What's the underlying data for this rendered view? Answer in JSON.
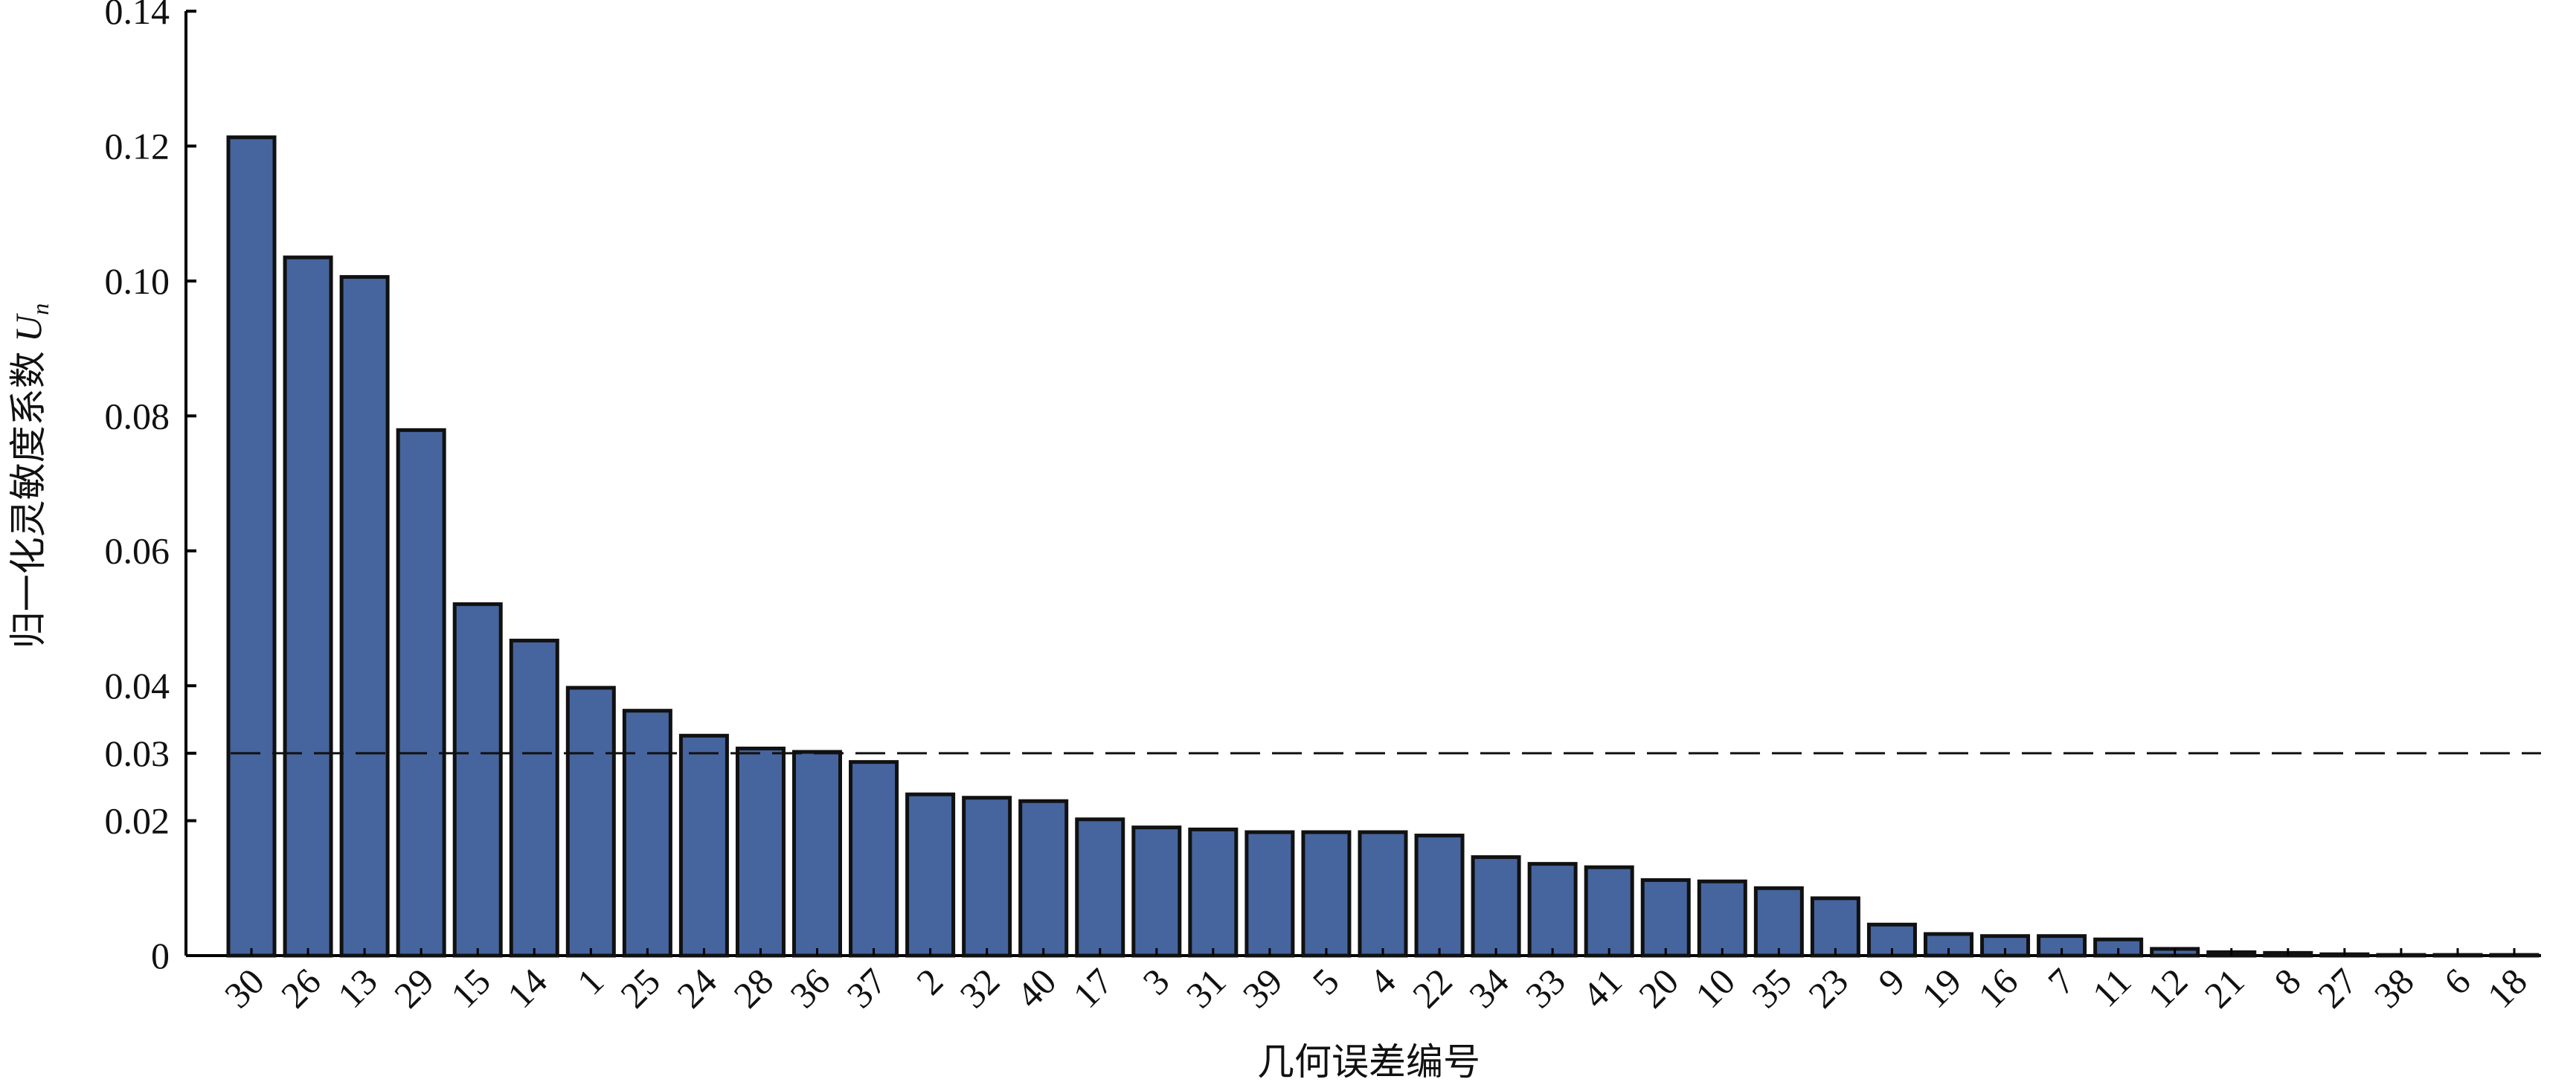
{
  "chart_data": {
    "type": "bar",
    "y_label": {
      "text": "归一化灵敏度系数",
      "symbol": "U",
      "subscript": "n"
    },
    "x_label": "几何误差编号",
    "categories": [
      "30",
      "26",
      "13",
      "29",
      "15",
      "14",
      "1",
      "25",
      "24",
      "28",
      "36",
      "37",
      "2",
      "32",
      "40",
      "17",
      "3",
      "31",
      "39",
      "5",
      "4",
      "22",
      "34",
      "33",
      "41",
      "20",
      "10",
      "35",
      "23",
      "9",
      "19",
      "16",
      "7",
      "11",
      "12",
      "21",
      "8",
      "27",
      "38",
      "6",
      "18"
    ],
    "values": [
      0.1213,
      0.1035,
      0.1006,
      0.0779,
      0.0521,
      0.0467,
      0.0397,
      0.0363,
      0.0326,
      0.0307,
      0.0302,
      0.0287,
      0.0239,
      0.0234,
      0.0229,
      0.0202,
      0.019,
      0.0187,
      0.0183,
      0.0183,
      0.0183,
      0.0178,
      0.0146,
      0.0136,
      0.0131,
      0.0112,
      0.011,
      0.01,
      0.0085,
      0.0046,
      0.0032,
      0.0029,
      0.0029,
      0.0024,
      0.001,
      0.0005,
      0.0004,
      0.0002,
      0.0001,
      0.0001,
      0.0001
    ],
    "color": "#46659e",
    "threshold": 0.03,
    "ylim": [
      0,
      0.14
    ],
    "yticks": [
      0,
      0.02,
      0.03,
      0.04,
      0.06,
      0.08,
      {
        "value": 0.1,
        "label": "0.10"
      },
      0.12,
      0.14
    ]
  }
}
